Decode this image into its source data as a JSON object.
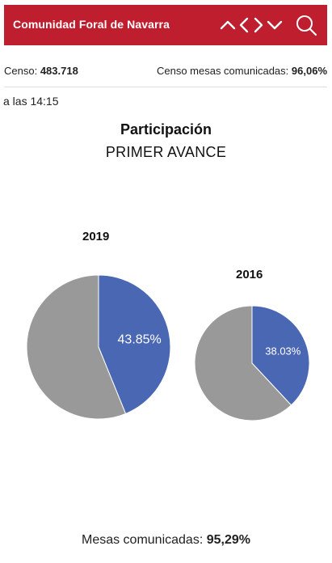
{
  "header": {
    "title": "Comunidad Foral de Navarra",
    "icons": [
      "chevron-up-icon",
      "chevron-left-icon",
      "chevron-right-icon",
      "chevron-down-icon",
      "search-icon"
    ],
    "background_color": "#be1e2d"
  },
  "summary": {
    "censo_label": "Censo:",
    "censo_value": "483.718",
    "censo_mesas_label": "Censo mesas comunicadas:",
    "censo_mesas_value": "96,06%"
  },
  "time_text": "a las 14:15",
  "section": {
    "title": "Participación",
    "subtitle": "PRIMER AVANCE"
  },
  "chart_data": [
    {
      "type": "pie",
      "title": "2019",
      "slices": [
        {
          "label": "43.85%",
          "value": 43.85,
          "color": "#4a67b4"
        },
        {
          "label": "",
          "value": 56.15,
          "color": "#999999"
        }
      ]
    },
    {
      "type": "pie",
      "title": "2016",
      "slices": [
        {
          "label": "38.03%",
          "value": 38.03,
          "color": "#4a67b4"
        },
        {
          "label": "",
          "value": 61.97,
          "color": "#999999"
        }
      ]
    }
  ],
  "footer": {
    "label": "Mesas comunicadas:",
    "value": "95,29%"
  }
}
